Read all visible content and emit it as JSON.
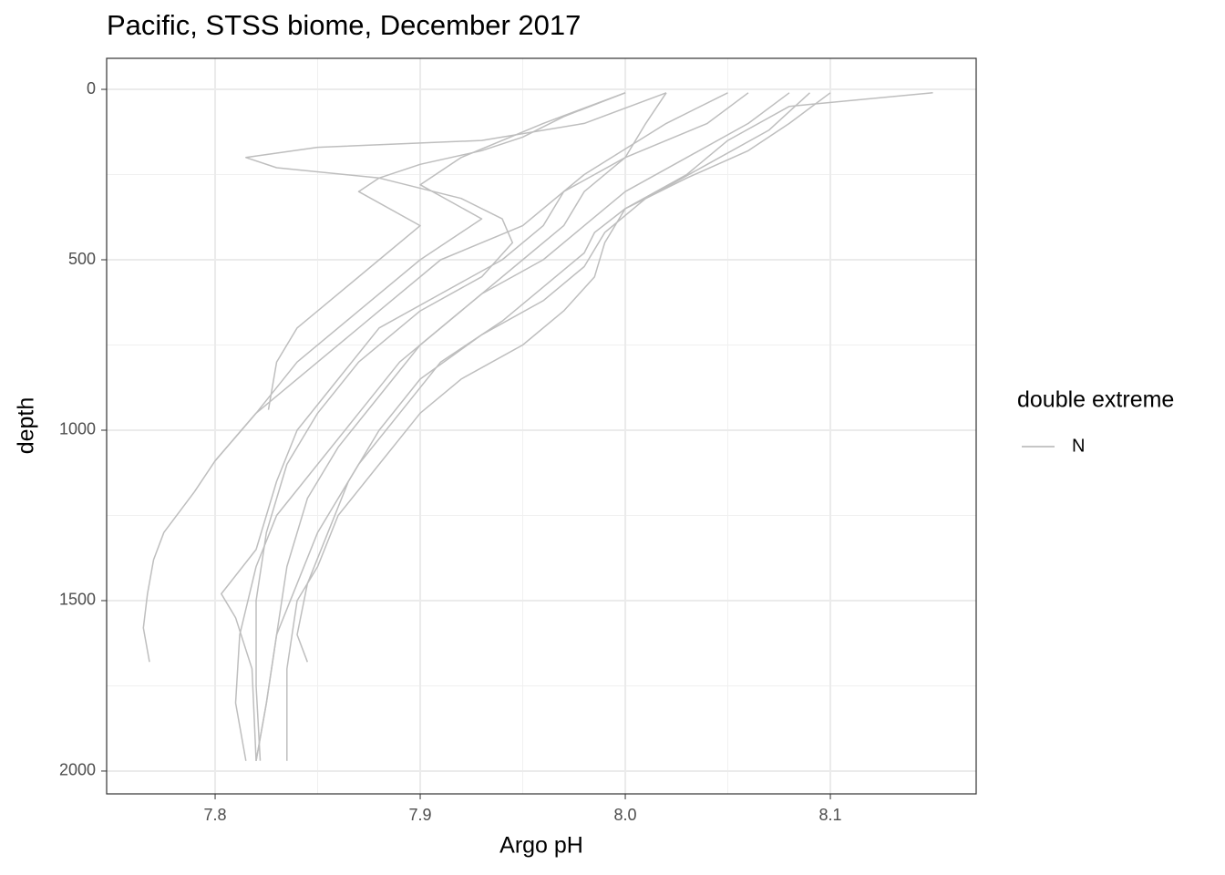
{
  "chart_data": {
    "type": "line",
    "title": "Pacific, STSS biome, December 2017",
    "x_label": "Argo pH",
    "y_label": "depth",
    "xlim": [
      7.7471,
      8.1711
    ],
    "ylim": [
      -91,
      2067
    ],
    "y_reversed": true,
    "xticks": [
      {
        "value": 7.8,
        "label": "7.8"
      },
      {
        "value": 7.9,
        "label": "7.9"
      },
      {
        "value": 8,
        "label": "8.0"
      },
      {
        "value": 8.1,
        "label": "8.1"
      }
    ],
    "yticks": [
      0,
      500,
      1000,
      1500,
      2000
    ],
    "grid": true,
    "legend": {
      "title": "double extreme",
      "position": "right",
      "entries": [
        {
          "name": "N",
          "color": "#bebebe"
        }
      ]
    },
    "series": [
      {
        "color": "#bebebe",
        "x": [
          8.05,
          8.02,
          7.98,
          7.95,
          7.91,
          7.88,
          7.85,
          7.82,
          7.8,
          7.79,
          7.775,
          7.77,
          7.767,
          7.765,
          7.768
        ],
        "values": [
          10,
          100,
          250,
          400,
          500,
          650,
          800,
          950,
          1090,
          1180,
          1300,
          1380,
          1480,
          1580,
          1680
        ]
      },
      {
        "color": "#bebebe",
        "x": [
          8.02,
          7.98,
          7.93,
          7.85,
          7.815,
          7.83,
          7.88,
          7.92,
          7.94,
          7.945,
          7.93,
          7.9,
          7.87,
          7.85,
          7.835,
          7.825,
          7.82,
          7.82,
          7.822
        ],
        "values": [
          10,
          100,
          150,
          170,
          200,
          230,
          260,
          320,
          380,
          450,
          550,
          650,
          800,
          950,
          1100,
          1300,
          1500,
          1750,
          1970
        ]
      },
      {
        "color": "#bebebe",
        "x": [
          8.08,
          8.06,
          8.03,
          8.0,
          7.98,
          7.96,
          7.93,
          7.9,
          7.88,
          7.86,
          7.845,
          7.835,
          7.83,
          7.825,
          7.82
        ],
        "values": [
          10,
          100,
          200,
          300,
          400,
          500,
          600,
          750,
          900,
          1050,
          1200,
          1400,
          1600,
          1800,
          1970
        ]
      },
      {
        "color": "#bebebe",
        "x": [
          8.15,
          8.08,
          8.05,
          8.03,
          8.0,
          7.99,
          7.985,
          7.97,
          7.95,
          7.92,
          7.9,
          7.88,
          7.86,
          7.85,
          7.84,
          7.835,
          7.835
        ],
        "values": [
          10,
          50,
          150,
          250,
          350,
          450,
          550,
          650,
          750,
          850,
          950,
          1100,
          1250,
          1400,
          1500,
          1700,
          1970
        ]
      },
      {
        "color": "#bebebe",
        "x": [
          8.0,
          7.97,
          7.95,
          7.93,
          7.9,
          7.88,
          7.87,
          7.9,
          7.88,
          7.86,
          7.84,
          7.83,
          7.826
        ],
        "values": [
          10,
          80,
          140,
          180,
          220,
          260,
          300,
          400,
          500,
          600,
          700,
          800,
          940
        ]
      },
      {
        "color": "#bebebe",
        "x": [
          8.02,
          8.01,
          8.0,
          7.98,
          7.97,
          7.95,
          7.92,
          7.89,
          7.87,
          7.85,
          7.83,
          7.82,
          7.812,
          7.81,
          7.815
        ],
        "values": [
          10,
          100,
          200,
          300,
          400,
          500,
          650,
          800,
          950,
          1100,
          1250,
          1400,
          1600,
          1800,
          1970
        ]
      },
      {
        "color": "#bebebe",
        "x": [
          8.09,
          8.07,
          8.04,
          8.01,
          7.99,
          7.98,
          7.96,
          7.93,
          7.9,
          7.88,
          7.865,
          7.855,
          7.845,
          7.84,
          7.845
        ],
        "values": [
          10,
          120,
          220,
          320,
          420,
          520,
          620,
          720,
          850,
          1000,
          1150,
          1300,
          1450,
          1600,
          1680
        ]
      },
      {
        "color": "#bebebe",
        "x": [
          8.06,
          8.04,
          8.0,
          7.97,
          7.96,
          7.94,
          7.91,
          7.88,
          7.86,
          7.84,
          7.83,
          7.82,
          7.803,
          7.81,
          7.818,
          7.82
        ],
        "values": [
          10,
          100,
          200,
          300,
          400,
          500,
          600,
          700,
          850,
          1000,
          1150,
          1350,
          1480,
          1550,
          1700,
          1970
        ]
      },
      {
        "color": "#bebebe",
        "x": [
          8.1,
          8.08,
          8.06,
          8.03,
          8.0,
          7.985,
          7.98,
          7.96,
          7.94,
          7.91,
          7.89,
          7.87,
          7.85,
          7.84,
          7.83,
          7.825,
          7.82
        ],
        "values": [
          10,
          100,
          180,
          260,
          350,
          420,
          480,
          580,
          680,
          800,
          950,
          1100,
          1300,
          1450,
          1600,
          1800,
          1970
        ]
      },
      {
        "color": "#bebebe",
        "x": [
          8.0,
          7.96,
          7.92,
          7.9,
          7.93,
          7.9,
          7.87,
          7.84,
          7.82,
          7.8
        ],
        "values": [
          10,
          100,
          200,
          280,
          380,
          500,
          650,
          800,
          950,
          1090
        ]
      }
    ]
  }
}
